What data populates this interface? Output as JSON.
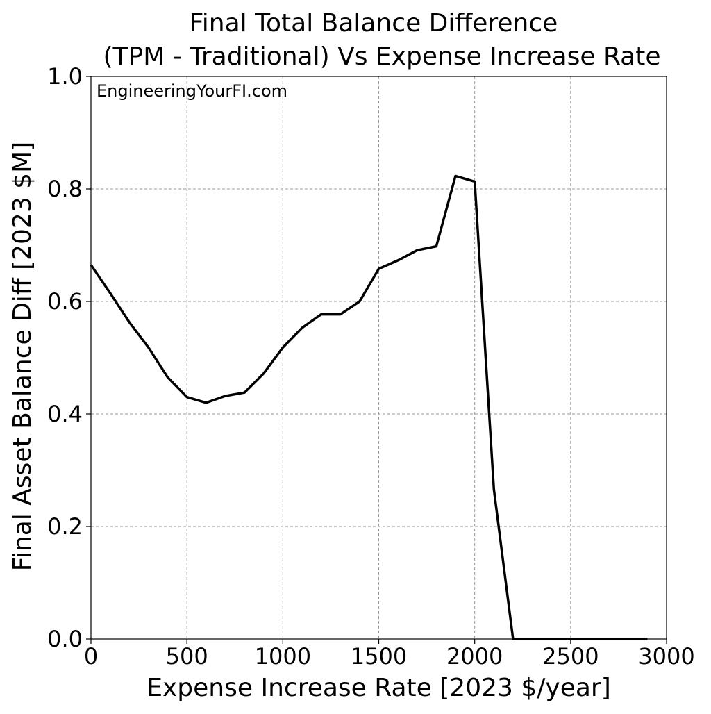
{
  "chart_data": {
    "type": "line",
    "title_lines": [
      "Final Total Balance Difference",
      "(TPM - Traditional) Vs Expense Increase Rate"
    ],
    "xlabel": "Expense Increase Rate [2023 $/year]",
    "ylabel": "Final Asset Balance Diff [2023 $M]",
    "annotation": "EngineeringYourFI.com",
    "xlim": [
      0,
      3000
    ],
    "ylim": [
      0.0,
      1.0
    ],
    "x_ticks": [
      0,
      500,
      1000,
      1500,
      2000,
      2500,
      3000
    ],
    "x_tick_labels": [
      "0",
      "500",
      "1000",
      "1500",
      "2000",
      "2500",
      "3000"
    ],
    "y_ticks": [
      0.0,
      0.2,
      0.4,
      0.6,
      0.8,
      1.0
    ],
    "y_tick_labels": [
      "0.0",
      "0.2",
      "0.4",
      "0.6",
      "0.8",
      "1.0"
    ],
    "grid": true,
    "line_color": "#000000",
    "grid_color": "#999999",
    "series": [
      {
        "x": [
          0,
          100,
          200,
          300,
          400,
          500,
          600,
          700,
          800,
          900,
          1000,
          1100,
          1200,
          1300,
          1400,
          1500,
          1600,
          1700,
          1800,
          1900,
          2000,
          2100,
          2200,
          2300,
          2400,
          2500,
          2600,
          2700,
          2800,
          2900
        ],
        "y": [
          0.665,
          0.615,
          0.563,
          0.518,
          0.465,
          0.43,
          0.42,
          0.432,
          0.438,
          0.472,
          0.518,
          0.553,
          0.577,
          0.577,
          0.6,
          0.658,
          0.673,
          0.691,
          0.698,
          0.823,
          0.813,
          0.266,
          0.0,
          0.0,
          0.0,
          0.0,
          0.0,
          0.0,
          0.0,
          0.0
        ]
      }
    ]
  }
}
